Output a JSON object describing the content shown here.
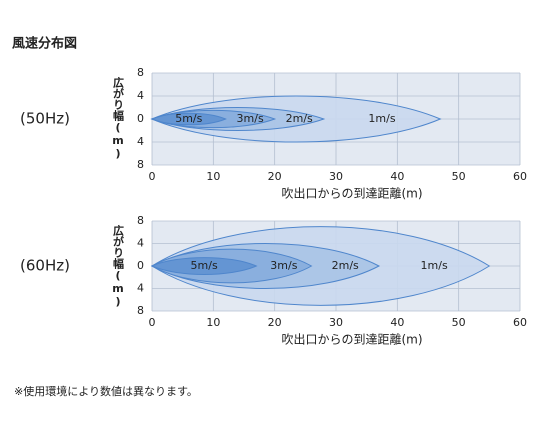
{
  "title": "風速分布図",
  "note": "※使用環境により数値は異なります。",
  "chart_data": [
    {
      "type": "spread",
      "label": "(50Hz)",
      "y_label": "広がり幅(m)",
      "x_label": "吹出口からの到達距離(m)",
      "xlim": [
        0,
        60
      ],
      "xticks": [
        0,
        10,
        20,
        30,
        40,
        50,
        60
      ],
      "ylim": [
        -8,
        8
      ],
      "yticks": [
        {
          "value": -8,
          "label": "8"
        },
        {
          "value": -4,
          "label": "4"
        },
        0,
        4,
        8
      ],
      "grid": true,
      "series": [
        {
          "name": "1m/s",
          "reach": 47,
          "width": 4
        },
        {
          "name": "2m/s",
          "reach": 28,
          "width": 2
        },
        {
          "name": "3m/s",
          "reach": 20,
          "width": 1.5
        },
        {
          "name": "5m/s",
          "reach": 12,
          "width": 1
        }
      ]
    },
    {
      "type": "spread",
      "label": "(60Hz)",
      "y_label": "広がり幅(m)",
      "x_label": "吹出口からの到達距離(m)",
      "xlim": [
        0,
        60
      ],
      "xticks": [
        0,
        10,
        20,
        30,
        40,
        50,
        60
      ],
      "ylim": [
        -8,
        8
      ],
      "yticks": [
        {
          "value": -8,
          "label": "8"
        },
        {
          "value": -4,
          "label": "4"
        },
        0,
        4,
        8
      ],
      "grid": true,
      "series": [
        {
          "name": "1m/s",
          "reach": 55,
          "width": 7
        },
        {
          "name": "2m/s",
          "reach": 37,
          "width": 4
        },
        {
          "name": "3m/s",
          "reach": 26,
          "width": 3
        },
        {
          "name": "5m/s",
          "reach": 17,
          "width": 1.5
        }
      ]
    }
  ]
}
